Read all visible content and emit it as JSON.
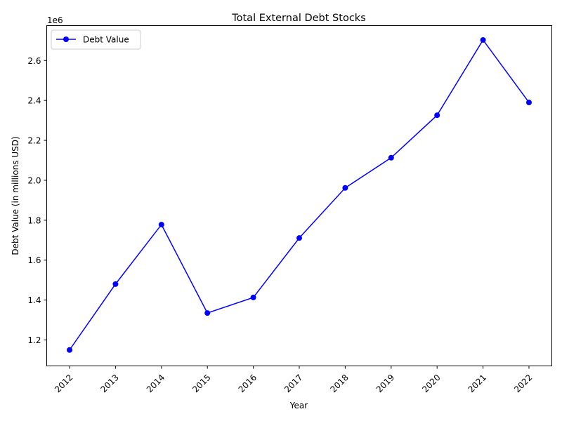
{
  "chart_data": {
    "type": "line",
    "title": "Total External Debt Stocks",
    "xlabel": "Year",
    "ylabel": "Debt Value (in millions USD)",
    "y_offset_text": "1e6",
    "x": [
      "2012",
      "2013",
      "2014",
      "2015",
      "2016",
      "2017",
      "2018",
      "2019",
      "2020",
      "2021",
      "2022"
    ],
    "series": [
      {
        "name": "Debt Value",
        "color": "#0000ff",
        "values": [
          1150000,
          1480000,
          1778000,
          1335000,
          1413000,
          1711000,
          1962000,
          2113000,
          2326000,
          2703000,
          2390000
        ]
      }
    ],
    "ylim": [
      1070000,
      2775000
    ],
    "yticks": [
      1200000,
      1400000,
      1600000,
      1800000,
      2000000,
      2200000,
      2400000,
      2600000
    ],
    "ytick_labels": [
      "1.2",
      "1.4",
      "1.6",
      "1.8",
      "2.0",
      "2.2",
      "2.4",
      "2.6"
    ],
    "grid": false,
    "legend_position": "upper-left"
  }
}
